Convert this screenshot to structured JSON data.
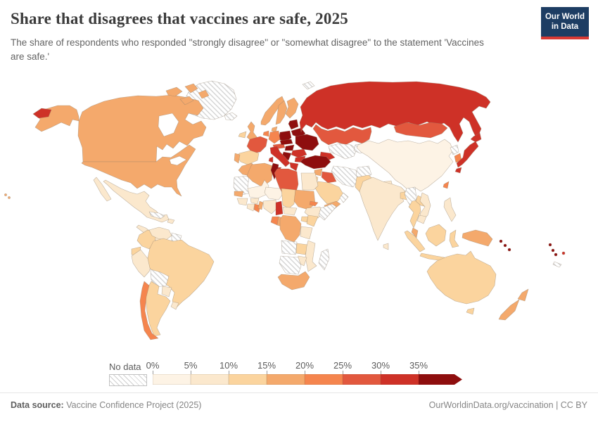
{
  "header": {
    "title": "Share that disagrees that vaccines are safe, 2025",
    "subtitle": "The share of respondents who responded \"strongly disagree\" or \"somewhat disagree\" to the statement 'Vaccines are safe.'",
    "logo_line1": "Our World",
    "logo_line2": "in Data"
  },
  "legend": {
    "no_data_label": "No data",
    "tick_labels": [
      "0%",
      "5%",
      "10%",
      "15%",
      "20%",
      "25%",
      "30%",
      "35%"
    ],
    "buckets": [
      {
        "label": "0-5%",
        "color": "#FDF3E5"
      },
      {
        "label": "5-10%",
        "color": "#FBE8CD"
      },
      {
        "label": "10-15%",
        "color": "#FBD49E"
      },
      {
        "label": "15-20%",
        "color": "#F4A96C"
      },
      {
        "label": "20-25%",
        "color": "#F5854E"
      },
      {
        "label": "25-30%",
        "color": "#E2583E"
      },
      {
        "label": "30-35%",
        "color": "#CE3127"
      },
      {
        "label": "35%+",
        "color": "#8E0E0E"
      }
    ]
  },
  "footer": {
    "source_label": "Data source:",
    "source_value": " Vaccine Confidence Project (2025)",
    "right_text": "OurWorldinData.org/vaccination | CC BY"
  },
  "chart_data": {
    "type": "choropleth-map",
    "title": "Share that disagrees that vaccines are safe",
    "year": 2025,
    "unit": "% of respondents who disagree vaccines are safe",
    "legend_position": "bottom",
    "no_data_style": "diagonal-hatch",
    "palette": {
      "0-5%": "#FDF3E5",
      "5-10%": "#FBE8CD",
      "10-15%": "#FBD49E",
      "15-20%": "#F4A96C",
      "20-25%": "#F5854E",
      "25-30%": "#E2583E",
      "30-35%": "#CE3127",
      "35%+": "#8E0E0E"
    },
    "entities": {
      "canada": "15-20%",
      "united-states": "15-20%",
      "mexico": "5-10%",
      "greenland": "no-data",
      "iceland": "no-data",
      "svalbard": "no-data",
      "cuba": "no-data",
      "hispaniola": "5-10%",
      "central-america": "5-10%",
      "colombia": "10-15%",
      "venezuela": "5-10%",
      "guyana": "no-data",
      "ecuador": "10-15%",
      "peru": "5-10%",
      "brazil": "10-15%",
      "bolivia": "no-data",
      "paraguay": "5-10%",
      "uruguay": "5-10%",
      "argentina": "10-15%",
      "chile": "20-25%",
      "ireland": "10-15%",
      "united-kingdom": "15-20%",
      "norway": "15-20%",
      "sweden": "15-20%",
      "finland": "15-20%",
      "denmark": "15-20%",
      "france": "25-30%",
      "spain": "10-15%",
      "portugal": "15-20%",
      "germany": "20-25%",
      "benelux": "20-25%",
      "switzerland-austria": "25-30%",
      "czechia-slovakia": "35%+",
      "poland": "35%+",
      "baltics": "35%+",
      "belarus": "35%+",
      "ukraine": "35%+",
      "hungary": "35%+",
      "romania": "30-35%",
      "serbia-balkans": "35%+",
      "bulgaria": "30-35%",
      "greece": "30-35%",
      "italy": "30-35%",
      "russia": "30-35%",
      "kazakhstan": "25-30%",
      "central-asia": "no-data",
      "kyrgyzstan-tajikistan": "no-data",
      "mongolia": "25-30%",
      "china": "0-5%",
      "north-korea": "no-data",
      "south-korea": "20-25%",
      "japan": "30-35%",
      "taiwan": "20-25%",
      "turkey": "35%+",
      "caucasus": "30-35%",
      "syria": "15-20%",
      "iraq": "25-30%",
      "iran": "no-data",
      "afghanistan": "no-data",
      "pakistan": "10-15%",
      "jordan-israel": "10-15%",
      "saudi-arabia": "10-15%",
      "yemen": "15-20%",
      "oman": "no-data",
      "egypt": "5-10%",
      "morocco": "15-20%",
      "western-sahara-mauritania": "no-data",
      "algeria": "15-20%",
      "tunisia": "35%+",
      "libya": "25-30%",
      "mali": "0-5%",
      "niger": "0-5%",
      "senegal": "15-20%",
      "guinea": "5-10%",
      "ivory-coast": "5-10%",
      "ghana": "20-25%",
      "burkina-faso": "5-10%",
      "benin-togo": "15-20%",
      "nigeria": "5-10%",
      "chad": "10-15%",
      "sudan": "15-20%",
      "eritrea": "20-25%",
      "ethiopia": "5-10%",
      "somalia": "no-data",
      "cameroon": "30-35%",
      "central-african-republic": "5-10%",
      "uganda": "10-15%",
      "kenya": "10-15%",
      "drc": "15-20%",
      "gabon": "20-25%",
      "congo": "15-20%",
      "tanzania": "5-10%",
      "angola": "no-data",
      "zambia": "10-15%",
      "mozambique": "5-10%",
      "zimbabwe": "5-10%",
      "namibia-botswana": "no-data",
      "south-africa": "15-20%",
      "madagascar": "no-data",
      "india": "5-10%",
      "nepal": "5-10%",
      "bangladesh": "10-15%",
      "sri-lanka": "5-10%",
      "myanmar": "no-data",
      "thailand": "10-15%",
      "laos": "10-15%",
      "vietnam": "5-10%",
      "cambodia": "5-10%",
      "malaysia": "15-20%",
      "indonesia": "10-15%",
      "philippines": "5-10%",
      "new-guinea": "15-20%",
      "australia": "10-15%",
      "new-zealand": "15-20%",
      "solomon-islands": "35%+",
      "vanuatu": "35%+",
      "fiji": "30-35%",
      "new-caledonia": "no-data"
    }
  }
}
